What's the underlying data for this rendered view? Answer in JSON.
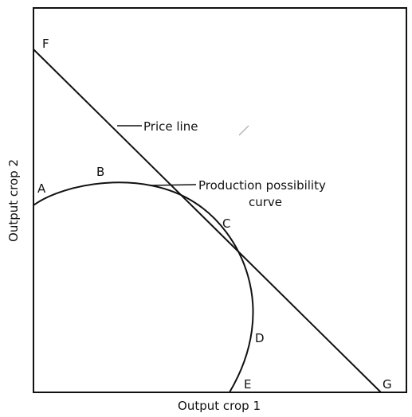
{
  "axes": {
    "x_label": "Output crop 1",
    "y_label": "Output crop 2"
  },
  "annotations": {
    "price_line": "Price line",
    "curve_line1": "Production possibility",
    "curve_line2": "curve"
  },
  "points": [
    "F",
    "A",
    "B",
    "C",
    "D",
    "E",
    "G"
  ]
}
